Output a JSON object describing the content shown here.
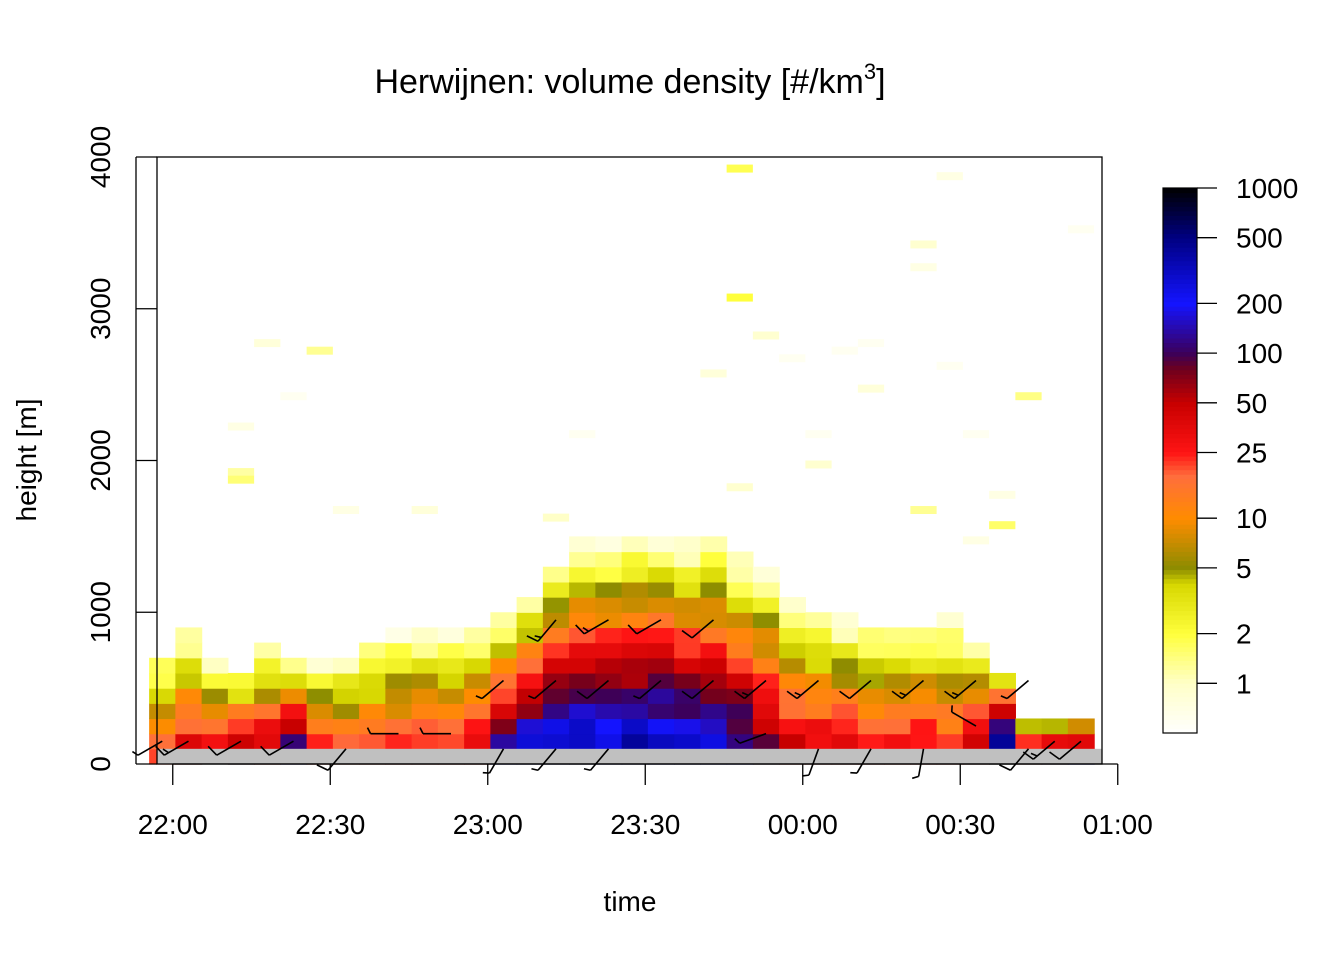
{
  "chart_data": {
    "type": "heatmap",
    "title": "Herwijnen: volume density [#/km",
    "title_superscript": "3",
    "title_suffix": "]",
    "xlabel": "time",
    "ylabel": "height [m]",
    "x_range_minutes": [
      -3,
      177
    ],
    "x_ticks": [
      {
        "minute": 0,
        "label": "22:00"
      },
      {
        "minute": 30,
        "label": "22:30"
      },
      {
        "minute": 60,
        "label": "23:00"
      },
      {
        "minute": 90,
        "label": "23:30"
      },
      {
        "minute": 120,
        "label": "00:00"
      },
      {
        "minute": 150,
        "label": "00:30"
      },
      {
        "minute": 180,
        "label": "01:00"
      }
    ],
    "ylim": [
      0,
      4000
    ],
    "y_ticks": [
      0,
      1000,
      2000,
      3000,
      4000
    ],
    "time_step_minutes": 5,
    "height_bin_m": 100,
    "colorbar": {
      "scale": "log",
      "range": [
        0.5,
        1000
      ],
      "ticks": [
        1,
        2,
        5,
        10,
        25,
        50,
        100,
        200,
        500,
        1000
      ]
    },
    "colors": {
      "ground": "#c0c0c0",
      "wind_barb": "#000000",
      "axis": "#000000"
    },
    "profiles": [
      {
        "time": "21:58",
        "min": -2,
        "top": 700,
        "peak": 30,
        "ground": 1,
        "lowcut": 0
      },
      {
        "time": "22:03",
        "min": 3,
        "top": 850,
        "peak": 45,
        "ground": 1,
        "lowcut": 0
      },
      {
        "time": "22:08",
        "min": 8,
        "top": 700,
        "peak": 40,
        "ground": 1,
        "lowcut": 100
      },
      {
        "time": "22:13",
        "min": 13,
        "top": 600,
        "peak": 80,
        "ground": 1,
        "lowcut": 0
      },
      {
        "time": "22:18",
        "min": 18,
        "top": 750,
        "peak": 60,
        "ground": 1,
        "lowcut": 0
      },
      {
        "time": "22:23",
        "min": 23,
        "top": 700,
        "peak": 150,
        "ground": 1,
        "lowcut": 0
      },
      {
        "time": "22:28",
        "min": 28,
        "top": 650,
        "peak": 30,
        "ground": 1,
        "lowcut": 0
      },
      {
        "time": "22:33",
        "min": 33,
        "top": 700,
        "peak": 25,
        "ground": 1,
        "lowcut": 0
      },
      {
        "time": "22:38",
        "min": 38,
        "top": 800,
        "peak": 25,
        "ground": 1,
        "lowcut": 0
      },
      {
        "time": "22:43",
        "min": 43,
        "top": 850,
        "peak": 30,
        "ground": 1,
        "lowcut": 0
      },
      {
        "time": "22:48",
        "min": 48,
        "top": 850,
        "peak": 40,
        "ground": 1,
        "lowcut": 0
      },
      {
        "time": "22:53",
        "min": 53,
        "top": 850,
        "peak": 25,
        "ground": 1,
        "lowcut": 0
      },
      {
        "time": "22:58",
        "min": 58,
        "top": 900,
        "peak": 40,
        "ground": 1,
        "lowcut": 0
      },
      {
        "time": "23:03",
        "min": 63,
        "top": 950,
        "peak": 200,
        "ground": 1,
        "lowcut": 0
      },
      {
        "time": "23:08",
        "min": 68,
        "top": 1100,
        "peak": 300,
        "ground": 1,
        "lowcut": 0
      },
      {
        "time": "23:13",
        "min": 73,
        "top": 1300,
        "peak": 400,
        "ground": 1,
        "lowcut": 0
      },
      {
        "time": "23:18",
        "min": 78,
        "top": 1450,
        "peak": 400,
        "ground": 1,
        "lowcut": 0
      },
      {
        "time": "23:23",
        "min": 83,
        "top": 1450,
        "peak": 350,
        "ground": 1,
        "lowcut": 0
      },
      {
        "time": "23:28",
        "min": 88,
        "top": 1500,
        "peak": 400,
        "ground": 1,
        "lowcut": 0
      },
      {
        "time": "23:33",
        "min": 93,
        "top": 1500,
        "peak": 350,
        "ground": 1,
        "lowcut": 0
      },
      {
        "time": "23:38",
        "min": 98,
        "top": 1450,
        "peak": 300,
        "ground": 1,
        "lowcut": 0
      },
      {
        "time": "23:43",
        "min": 103,
        "top": 1500,
        "peak": 250,
        "ground": 1,
        "lowcut": 0
      },
      {
        "time": "23:48",
        "min": 108,
        "top": 1350,
        "peak": 200,
        "ground": 1,
        "lowcut": 0
      },
      {
        "time": "23:53",
        "min": 113,
        "top": 1300,
        "peak": 100,
        "ground": 1,
        "lowcut": 0
      },
      {
        "time": "23:58",
        "min": 118,
        "top": 1050,
        "peak": 50,
        "ground": 1,
        "lowcut": 0
      },
      {
        "time": "00:03",
        "min": 123,
        "top": 1000,
        "peak": 45,
        "ground": 1,
        "lowcut": 0
      },
      {
        "time": "00:08",
        "min": 128,
        "top": 950,
        "peak": 40,
        "ground": 1,
        "lowcut": 0
      },
      {
        "time": "00:13",
        "min": 133,
        "top": 900,
        "peak": 40,
        "ground": 1,
        "lowcut": 0
      },
      {
        "time": "00:18",
        "min": 138,
        "top": 900,
        "peak": 30,
        "ground": 1,
        "lowcut": 0
      },
      {
        "time": "00:23",
        "min": 143,
        "top": 900,
        "peak": 40,
        "ground": 1,
        "lowcut": 0
      },
      {
        "time": "00:28",
        "min": 148,
        "top": 950,
        "peak": 30,
        "ground": 1,
        "lowcut": 0
      },
      {
        "time": "00:33",
        "min": 153,
        "top": 800,
        "peak": 60,
        "ground": 1,
        "lowcut": 0
      },
      {
        "time": "00:38",
        "min": 158,
        "top": 600,
        "peak": 1000,
        "ground": 1,
        "lowcut": 0
      },
      {
        "time": "00:43",
        "min": 163,
        "top": 300,
        "peak": 80,
        "ground": 1,
        "lowcut": 0
      },
      {
        "time": "00:48",
        "min": 168,
        "top": 300,
        "peak": 120,
        "ground": 1,
        "lowcut": 0
      },
      {
        "time": "00:53",
        "min": 173,
        "top": 300,
        "peak": 200,
        "ground": 1,
        "lowcut": 0
      }
    ],
    "sparse_cells": [
      {
        "min": 13,
        "h": 2200,
        "v": 0.7
      },
      {
        "min": 13,
        "h": 1900,
        "v": 1.2
      },
      {
        "min": 13,
        "h": 1850,
        "v": 1.5
      },
      {
        "min": 18,
        "h": 2750,
        "v": 0.8
      },
      {
        "min": 23,
        "h": 2400,
        "v": 0.6
      },
      {
        "min": 28,
        "h": 2700,
        "v": 1.3
      },
      {
        "min": 33,
        "h": 1650,
        "v": 0.7
      },
      {
        "min": 48,
        "h": 1650,
        "v": 0.8
      },
      {
        "min": 73,
        "h": 1600,
        "v": 1.0
      },
      {
        "min": 78,
        "h": 2150,
        "v": 0.6
      },
      {
        "min": 103,
        "h": 2550,
        "v": 0.8
      },
      {
        "min": 108,
        "h": 3900,
        "v": 1.8
      },
      {
        "min": 108,
        "h": 3050,
        "v": 2.0
      },
      {
        "min": 108,
        "h": 1800,
        "v": 0.9
      },
      {
        "min": 113,
        "h": 2800,
        "v": 0.9
      },
      {
        "min": 118,
        "h": 2650,
        "v": 0.6
      },
      {
        "min": 123,
        "h": 2150,
        "v": 0.6
      },
      {
        "min": 123,
        "h": 1950,
        "v": 0.9
      },
      {
        "min": 128,
        "h": 2700,
        "v": 0.6
      },
      {
        "min": 133,
        "h": 2750,
        "v": 0.6
      },
      {
        "min": 133,
        "h": 2450,
        "v": 0.8
      },
      {
        "min": 143,
        "h": 3400,
        "v": 0.9
      },
      {
        "min": 143,
        "h": 3250,
        "v": 0.7
      },
      {
        "min": 143,
        "h": 1650,
        "v": 1.3
      },
      {
        "min": 148,
        "h": 3850,
        "v": 0.7
      },
      {
        "min": 148,
        "h": 2600,
        "v": 0.6
      },
      {
        "min": 153,
        "h": 2150,
        "v": 0.6
      },
      {
        "min": 153,
        "h": 1450,
        "v": 0.7
      },
      {
        "min": 158,
        "h": 1550,
        "v": 1.6
      },
      {
        "min": 158,
        "h": 1750,
        "v": 0.7
      },
      {
        "min": 163,
        "h": 2400,
        "v": 1.4
      },
      {
        "min": 173,
        "h": 3500,
        "v": 0.6
      }
    ],
    "wind_barbs": [
      {
        "min": -2,
        "h": 150,
        "dir": 240,
        "speed": 5
      },
      {
        "min": 3,
        "h": 150,
        "dir": 240,
        "speed": 15
      },
      {
        "min": 13,
        "h": 150,
        "dir": 240,
        "speed": 10
      },
      {
        "min": 23,
        "h": 150,
        "dir": 240,
        "speed": 10
      },
      {
        "min": 33,
        "h": 100,
        "dir": 220,
        "speed": 10
      },
      {
        "min": 43,
        "h": 200,
        "dir": 270,
        "speed": 5
      },
      {
        "min": 53,
        "h": 200,
        "dir": 270,
        "speed": 5
      },
      {
        "min": 63,
        "h": 100,
        "dir": 210,
        "speed": 5
      },
      {
        "min": 63,
        "h": 550,
        "dir": 230,
        "speed": 5
      },
      {
        "min": 73,
        "h": 100,
        "dir": 220,
        "speed": 5
      },
      {
        "min": 73,
        "h": 550,
        "dir": 230,
        "speed": 5
      },
      {
        "min": 73,
        "h": 950,
        "dir": 220,
        "speed": 15
      },
      {
        "min": 83,
        "h": 100,
        "dir": 220,
        "speed": 5
      },
      {
        "min": 83,
        "h": 550,
        "dir": 230,
        "speed": 10
      },
      {
        "min": 83,
        "h": 950,
        "dir": 240,
        "speed": 15
      },
      {
        "min": 93,
        "h": 550,
        "dir": 230,
        "speed": 5
      },
      {
        "min": 93,
        "h": 950,
        "dir": 240,
        "speed": 10
      },
      {
        "min": 103,
        "h": 550,
        "dir": 230,
        "speed": 10
      },
      {
        "min": 103,
        "h": 950,
        "dir": 230,
        "speed": 10
      },
      {
        "min": 113,
        "h": 550,
        "dir": 230,
        "speed": 15
      },
      {
        "min": 113,
        "h": 200,
        "dir": 250,
        "speed": 5
      },
      {
        "min": 123,
        "h": 550,
        "dir": 230,
        "speed": 15
      },
      {
        "min": 123,
        "h": 100,
        "dir": 200,
        "speed": 5
      },
      {
        "min": 133,
        "h": 550,
        "dir": 230,
        "speed": 10
      },
      {
        "min": 133,
        "h": 100,
        "dir": 210,
        "speed": 5
      },
      {
        "min": 143,
        "h": 550,
        "dir": 230,
        "speed": 15
      },
      {
        "min": 143,
        "h": 100,
        "dir": 190,
        "speed": 5
      },
      {
        "min": 153,
        "h": 550,
        "dir": 230,
        "speed": 15
      },
      {
        "min": 153,
        "h": 250,
        "dir": 300,
        "speed": 5
      },
      {
        "min": 163,
        "h": 550,
        "dir": 230,
        "speed": 5
      },
      {
        "min": 163,
        "h": 100,
        "dir": 220,
        "speed": 10
      },
      {
        "min": 168,
        "h": 150,
        "dir": 230,
        "speed": 15
      },
      {
        "min": 173,
        "h": 150,
        "dir": 230,
        "speed": 10
      }
    ]
  }
}
